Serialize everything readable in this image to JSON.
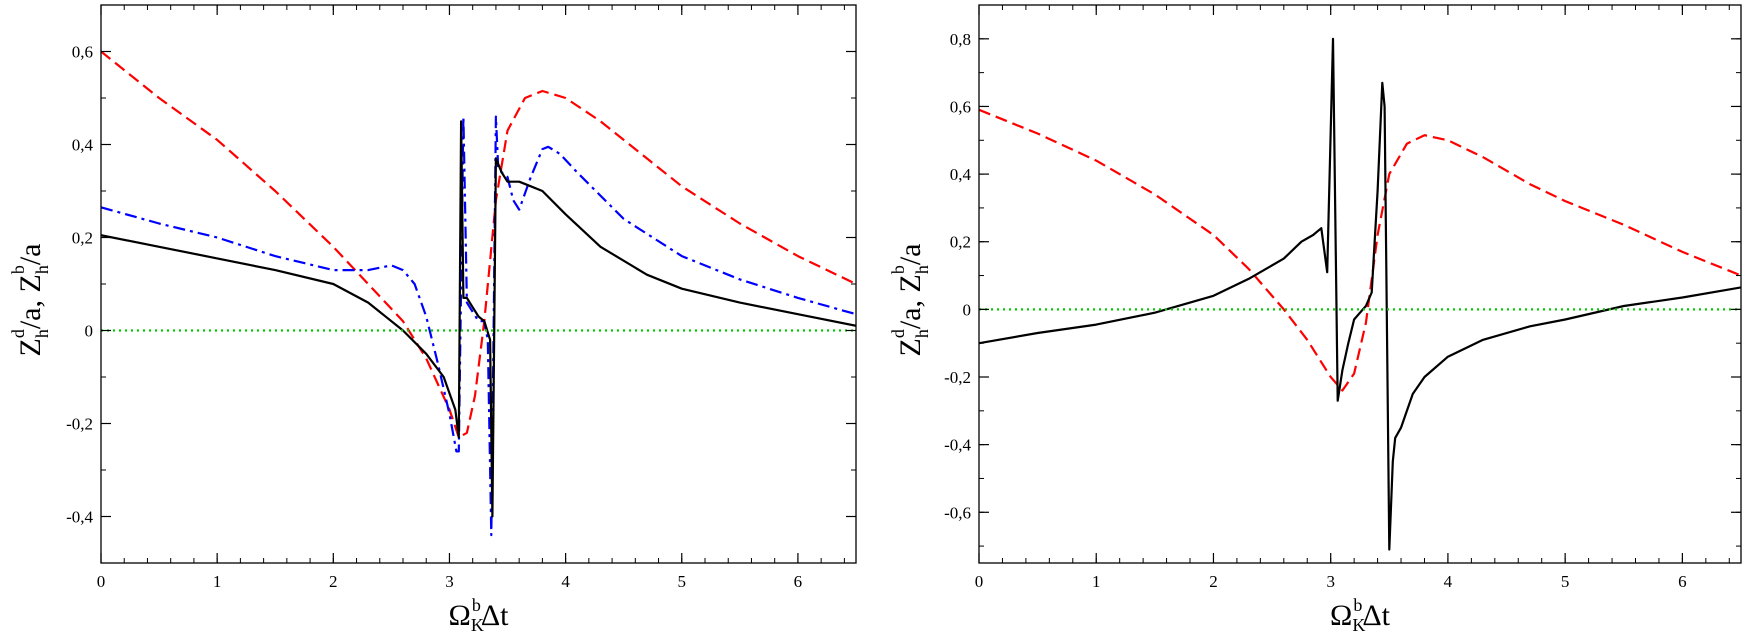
{
  "chart_data": [
    {
      "type": "line",
      "xlabel": {
        "main": "Ω",
        "sub": "K",
        "sup": "b",
        "tail": "Δt"
      },
      "ylabel": {
        "parts": [
          {
            "t": "Z",
            "k": "main"
          },
          {
            "t": "h",
            "k": "sub"
          },
          {
            "t": "d",
            "k": "sup"
          },
          {
            "t": "/a, Z",
            "k": "main"
          },
          {
            "t": "h",
            "k": "sub"
          },
          {
            "t": "b",
            "k": "sup"
          },
          {
            "t": "/a",
            "k": "main"
          }
        ]
      },
      "xlim": [
        0,
        6.5
      ],
      "ylim": [
        -0.5,
        0.7
      ],
      "xticks": [
        0,
        1,
        2,
        3,
        4,
        5,
        6
      ],
      "xtick_labels": [
        "0",
        "1",
        "2",
        "3",
        "4",
        "5",
        "6"
      ],
      "yticks": [
        -0.4,
        -0.2,
        0,
        0.2,
        0.4,
        0.6
      ],
      "ytick_labels": [
        "-0,4",
        "-0,2",
        "0",
        "0,2",
        "0,4",
        "0,6"
      ],
      "grid": false,
      "series": [
        {
          "color": "#ff0000",
          "style": "dashed",
          "x": [
            0,
            0.5,
            1.0,
            1.5,
            2.0,
            2.3,
            2.6,
            2.8,
            3.0,
            3.08,
            3.15,
            3.22,
            3.3,
            3.4,
            3.5,
            3.65,
            3.8,
            4.0,
            4.3,
            4.7,
            5.0,
            5.5,
            6.0,
            6.5
          ],
          "y": [
            0.6,
            0.5,
            0.41,
            0.3,
            0.18,
            0.1,
            0.02,
            -0.06,
            -0.17,
            -0.23,
            -0.22,
            -0.14,
            0.02,
            0.28,
            0.43,
            0.5,
            0.515,
            0.5,
            0.45,
            0.37,
            0.31,
            0.23,
            0.16,
            0.1
          ]
        },
        {
          "color": "#0000ff",
          "style": "dashdot",
          "x": [
            0,
            0.5,
            1.0,
            1.5,
            2.0,
            2.3,
            2.5,
            2.6,
            2.7,
            2.8,
            2.9,
            3.0,
            3.06,
            3.08,
            3.12,
            3.15,
            3.2,
            3.25,
            3.3,
            3.33,
            3.36,
            3.38,
            3.4,
            3.42,
            3.45,
            3.5,
            3.55,
            3.6,
            3.7,
            3.8,
            3.85,
            3.95,
            4.1,
            4.5,
            5.0,
            5.5,
            6.0,
            6.5
          ],
          "y": [
            0.265,
            0.23,
            0.2,
            0.16,
            0.13,
            0.13,
            0.14,
            0.13,
            0.1,
            0.03,
            -0.07,
            -0.18,
            -0.26,
            -0.26,
            0.46,
            0.06,
            0.04,
            0.02,
            0.02,
            -0.02,
            -0.44,
            0.0,
            0.46,
            0.35,
            0.34,
            0.33,
            0.28,
            0.26,
            0.33,
            0.39,
            0.395,
            0.38,
            0.34,
            0.24,
            0.16,
            0.11,
            0.07,
            0.035
          ]
        },
        {
          "color": "#000000",
          "style": "solid",
          "x": [
            0,
            0.5,
            1.0,
            1.5,
            2.0,
            2.3,
            2.6,
            2.8,
            2.95,
            3.05,
            3.08,
            3.1,
            3.12,
            3.15,
            3.2,
            3.25,
            3.3,
            3.35,
            3.37,
            3.4,
            3.45,
            3.5,
            3.6,
            3.7,
            3.8,
            4.0,
            4.3,
            4.7,
            5.0,
            5.5,
            6.0,
            6.5
          ],
          "y": [
            0.205,
            0.18,
            0.155,
            0.13,
            0.1,
            0.06,
            0.0,
            -0.05,
            -0.1,
            -0.17,
            -0.23,
            0.45,
            0.07,
            0.07,
            0.05,
            0.03,
            0.02,
            -0.02,
            -0.4,
            0.37,
            0.34,
            0.32,
            0.32,
            0.31,
            0.3,
            0.25,
            0.18,
            0.12,
            0.09,
            0.06,
            0.035,
            0.01
          ]
        },
        {
          "color": "#00cc00",
          "style": "dotted",
          "x": [
            0,
            6.5
          ],
          "y": [
            0,
            0
          ]
        }
      ]
    },
    {
      "type": "line",
      "xlabel": {
        "main": "Ω",
        "sub": "K",
        "sup": "b",
        "tail": "Δt"
      },
      "ylabel": {
        "parts": [
          {
            "t": "Z",
            "k": "main"
          },
          {
            "t": "h",
            "k": "sub"
          },
          {
            "t": "d",
            "k": "sup"
          },
          {
            "t": "/a, ",
            "k": "main"
          },
          {
            "t": "Z",
            "k": "main"
          },
          {
            "t": "h",
            "k": "sub"
          },
          {
            "t": "b",
            "k": "sup"
          },
          {
            "t": "/a",
            "k": "main"
          }
        ]
      },
      "xlim": [
        0,
        6.5
      ],
      "ylim": [
        -0.75,
        0.9
      ],
      "xticks": [
        0,
        1,
        2,
        3,
        4,
        5,
        6
      ],
      "xtick_labels": [
        "0",
        "1",
        "2",
        "3",
        "4",
        "5",
        "6"
      ],
      "yticks": [
        -0.6,
        -0.4,
        -0.2,
        0,
        0.2,
        0.4,
        0.6,
        0.8
      ],
      "ytick_labels": [
        "-0,6",
        "-0,4",
        "-0,2",
        "0",
        "0,2",
        "0,4",
        "0,6",
        "0,8"
      ],
      "grid": false,
      "series": [
        {
          "color": "#ff0000",
          "style": "dashed",
          "x": [
            0,
            0.5,
            1.0,
            1.5,
            2.0,
            2.3,
            2.6,
            2.8,
            3.0,
            3.1,
            3.2,
            3.3,
            3.4,
            3.5,
            3.65,
            3.8,
            4.0,
            4.3,
            4.7,
            5.0,
            5.5,
            6.0,
            6.5
          ],
          "y": [
            0.59,
            0.52,
            0.44,
            0.34,
            0.22,
            0.12,
            0.0,
            -0.09,
            -0.2,
            -0.24,
            -0.19,
            -0.04,
            0.22,
            0.4,
            0.49,
            0.515,
            0.5,
            0.45,
            0.37,
            0.32,
            0.25,
            0.17,
            0.1
          ]
        },
        {
          "color": "#000000",
          "style": "solid",
          "x": [
            0,
            0.5,
            1.0,
            1.5,
            2.0,
            2.3,
            2.6,
            2.75,
            2.85,
            2.92,
            2.97,
            3.02,
            3.06,
            3.1,
            3.15,
            3.2,
            3.25,
            3.3,
            3.35,
            3.4,
            3.44,
            3.46,
            3.5,
            3.53,
            3.55,
            3.6,
            3.65,
            3.7,
            3.8,
            4.0,
            4.3,
            4.7,
            5.0,
            5.5,
            6.0,
            6.5
          ],
          "y": [
            -0.1,
            -0.07,
            -0.045,
            -0.01,
            0.04,
            0.09,
            0.15,
            0.2,
            0.22,
            0.24,
            0.11,
            0.8,
            -0.27,
            -0.18,
            -0.1,
            -0.03,
            -0.01,
            0.01,
            0.05,
            0.35,
            0.67,
            0.6,
            -0.71,
            -0.45,
            -0.38,
            -0.35,
            -0.3,
            -0.25,
            -0.2,
            -0.14,
            -0.09,
            -0.05,
            -0.03,
            0.01,
            0.035,
            0.065
          ]
        },
        {
          "color": "#00cc00",
          "style": "dotted",
          "x": [
            0,
            6.5
          ],
          "y": [
            0,
            0
          ]
        }
      ]
    }
  ]
}
